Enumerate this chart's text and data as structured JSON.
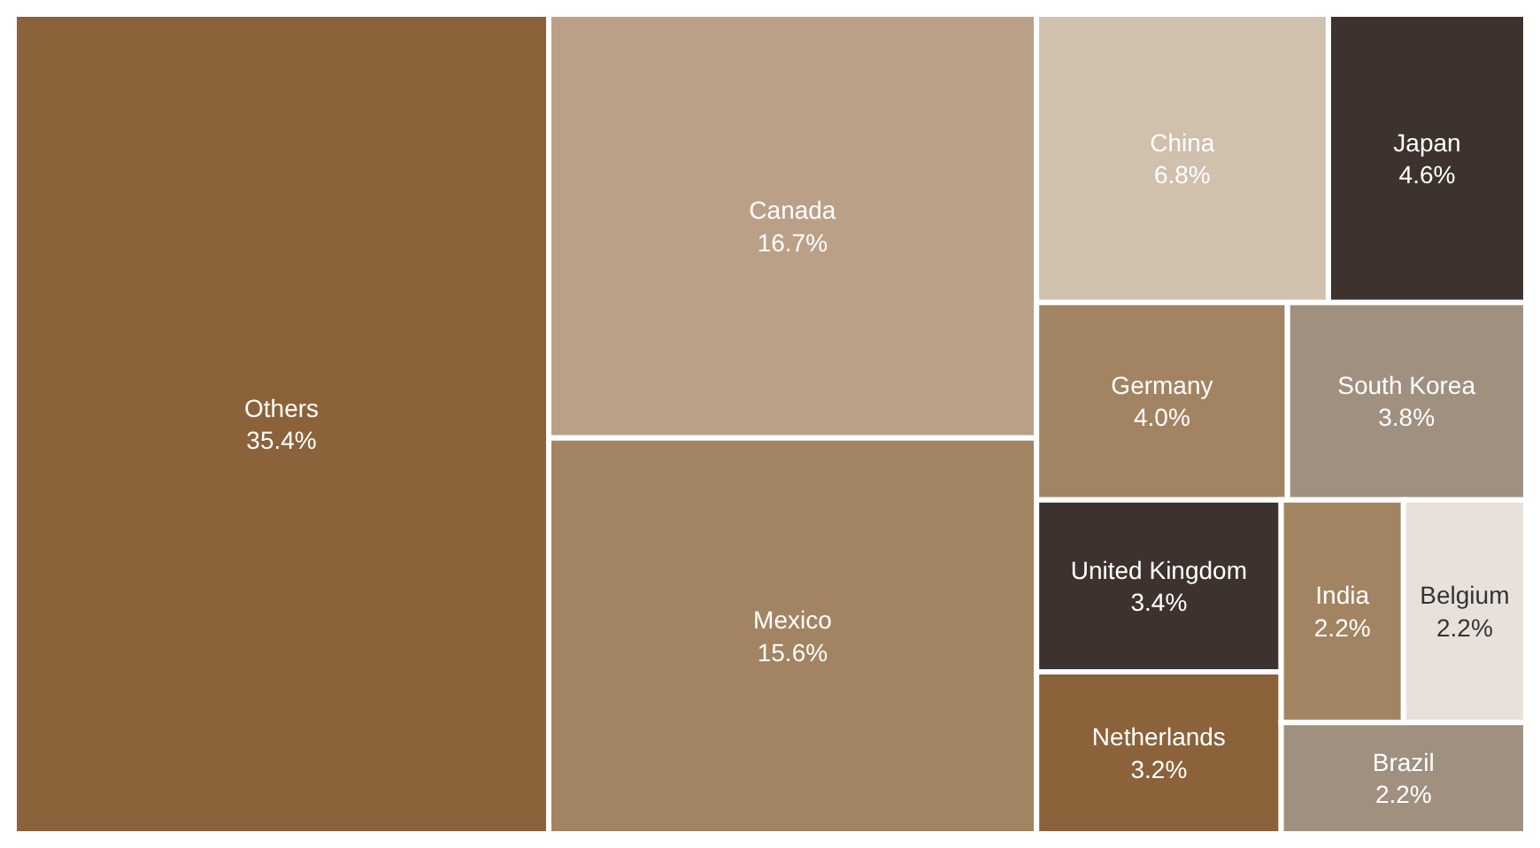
{
  "chart_data": {
    "type": "other",
    "categories": [
      "Others",
      "Canada",
      "Mexico",
      "China",
      "Japan",
      "Germany",
      "South Korea",
      "United Kingdom",
      "Netherlands",
      "India",
      "Belgium",
      "Brazil"
    ],
    "values": [
      35.4,
      16.7,
      15.6,
      6.8,
      4.6,
      4.0,
      3.8,
      3.4,
      3.2,
      2.2,
      2.2,
      2.2
    ],
    "value_labels": [
      "35.4%",
      "16.7%",
      "15.6%",
      "6.8%",
      "4.6%",
      "4.0%",
      "3.8%",
      "3.4%",
      "3.2%",
      "2.2%",
      "2.2%",
      "2.2%"
    ],
    "colors": [
      "#8b6239",
      "#bba088",
      "#a38462",
      "#d0c0ae",
      "#3d322d",
      "#a38462",
      "#a09080",
      "#3d322d",
      "#8b6239",
      "#a38462",
      "#e8e0da",
      "#a09080"
    ]
  }
}
